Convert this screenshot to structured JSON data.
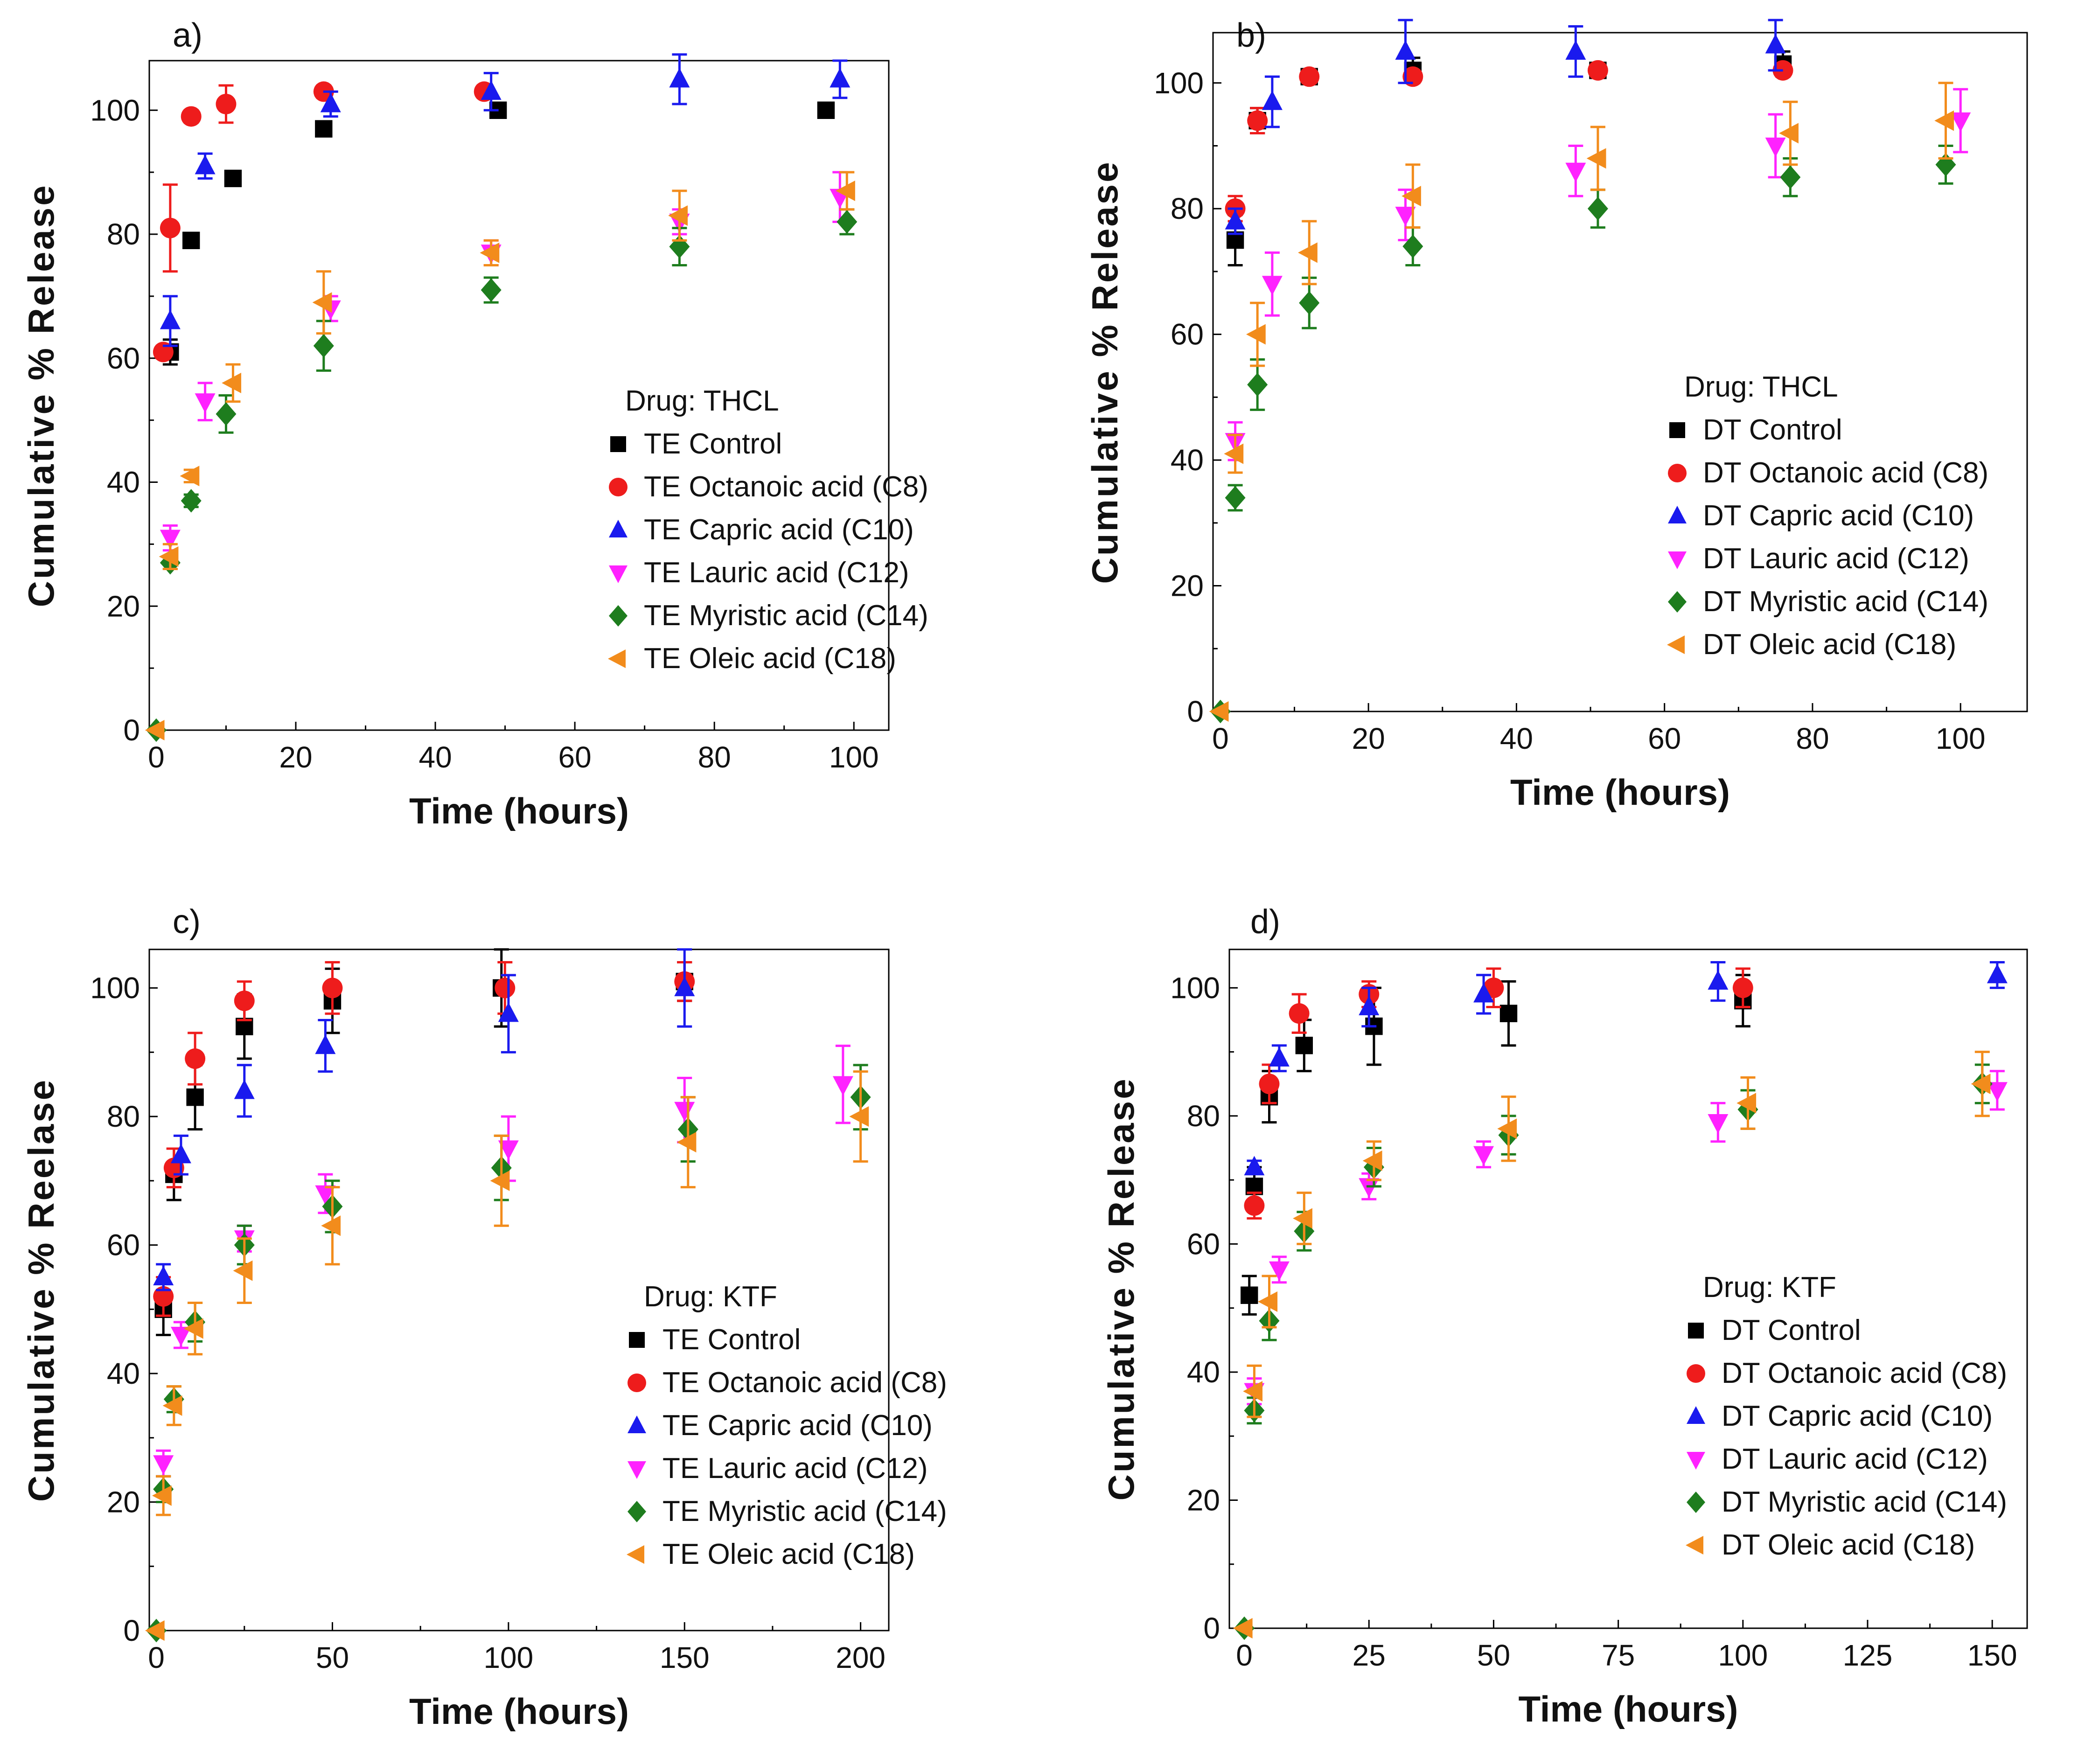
{
  "chart_data": [
    {
      "panel": "a)",
      "type": "scatter",
      "xlabel": "Time (hours)",
      "ylabel": "Cumulative % Release",
      "xlim": [
        -1,
        105
      ],
      "ylim": [
        0,
        108
      ],
      "xticks": [
        0,
        20,
        40,
        60,
        80,
        100
      ],
      "yticks": [
        0,
        20,
        40,
        60,
        80,
        100
      ],
      "legend_title": "Drug: THCL",
      "legend_position": "lower-right",
      "series": [
        {
          "name": "TE Control",
          "marker": "square",
          "color": "#000000",
          "x": [
            2,
            5,
            11,
            24,
            49,
            96
          ],
          "y": [
            61,
            79,
            89,
            97,
            100,
            100
          ],
          "err": [
            2,
            1,
            1,
            1,
            1,
            1
          ]
        },
        {
          "name": "TE Octanoic acid (C8)",
          "marker": "circle",
          "color": "#ee1c1c",
          "x": [
            1,
            2,
            5,
            10,
            24,
            47
          ],
          "y": [
            61,
            81,
            99,
            101,
            103,
            103
          ],
          "err": [
            1,
            7,
            1,
            3,
            1,
            1
          ]
        },
        {
          "name": "TE Capric acid (C10)",
          "marker": "triangle-up",
          "color": "#1a1aee",
          "x": [
            2,
            7,
            25,
            48,
            75,
            98
          ],
          "y": [
            66,
            91,
            101,
            103,
            105,
            105
          ],
          "err": [
            4,
            2,
            2,
            3,
            4,
            3
          ]
        },
        {
          "name": "TE Lauric acid (C12)",
          "marker": "triangle-down",
          "color": "#ff22ff",
          "x": [
            2,
            7,
            25,
            48,
            75,
            98
          ],
          "y": [
            31,
            53,
            68,
            77,
            82,
            86
          ],
          "err": [
            2,
            3,
            2,
            2,
            2,
            4
          ]
        },
        {
          "name": "TE Myristic acid (C14)",
          "marker": "diamond",
          "color": "#1e7d1e",
          "x": [
            0,
            2,
            5,
            10,
            24,
            48,
            75,
            99
          ],
          "y": [
            0,
            27,
            37,
            51,
            62,
            71,
            78,
            82
          ],
          "err": [
            0,
            1,
            1,
            3,
            4,
            2,
            3,
            2
          ]
        },
        {
          "name": "TE Oleic acid (C18)",
          "marker": "triangle-left",
          "color": "#f28c1c",
          "x": [
            0,
            2,
            5,
            11,
            24,
            48,
            75,
            99
          ],
          "y": [
            0,
            28,
            41,
            56,
            69,
            77,
            83,
            87
          ],
          "err": [
            0,
            2,
            1,
            3,
            5,
            2,
            4,
            3
          ]
        }
      ]
    },
    {
      "panel": "b)",
      "type": "scatter",
      "xlabel": "Time (hours)",
      "ylabel": "Cumulative % Release",
      "xlim": [
        -1,
        109
      ],
      "ylim": [
        0,
        108
      ],
      "xticks": [
        0,
        20,
        40,
        60,
        80,
        100
      ],
      "yticks": [
        0,
        20,
        40,
        60,
        80,
        100
      ],
      "legend_title": "Drug: THCL",
      "legend_position": "lower-right",
      "series": [
        {
          "name": "DT Control",
          "marker": "square",
          "color": "#000000",
          "x": [
            2,
            5,
            12,
            26,
            51,
            76
          ],
          "y": [
            75,
            94,
            101,
            102,
            102,
            103
          ],
          "err": [
            4,
            2,
            1,
            2,
            1,
            2
          ]
        },
        {
          "name": "DT Octanoic acid (C8)",
          "marker": "circle",
          "color": "#ee1c1c",
          "x": [
            2,
            5,
            12,
            26,
            51,
            76
          ],
          "y": [
            80,
            94,
            101,
            101,
            102,
            102
          ],
          "err": [
            2,
            2,
            1,
            1,
            1,
            1
          ]
        },
        {
          "name": "DT Capric acid (C10)",
          "marker": "triangle-up",
          "color": "#1a1aee",
          "x": [
            2,
            7,
            25,
            48,
            75
          ],
          "y": [
            78,
            97,
            105,
            105,
            106
          ],
          "err": [
            2,
            4,
            5,
            4,
            4
          ]
        },
        {
          "name": "DT Lauric acid (C12)",
          "marker": "triangle-down",
          "color": "#ff22ff",
          "x": [
            2,
            7,
            25,
            48,
            75,
            100
          ],
          "y": [
            43,
            68,
            79,
            86,
            90,
            94
          ],
          "err": [
            3,
            5,
            4,
            4,
            5,
            5
          ]
        },
        {
          "name": "DT Myristic acid (C14)",
          "marker": "diamond",
          "color": "#1e7d1e",
          "x": [
            0,
            2,
            5,
            12,
            26,
            51,
            77,
            98
          ],
          "y": [
            0,
            34,
            52,
            65,
            74,
            80,
            85,
            87
          ],
          "err": [
            0,
            2,
            4,
            4,
            3,
            3,
            3,
            3
          ]
        },
        {
          "name": "DT Oleic acid (C18)",
          "marker": "triangle-left",
          "color": "#f28c1c",
          "x": [
            0,
            2,
            5,
            12,
            26,
            51,
            77,
            98
          ],
          "y": [
            0,
            41,
            60,
            73,
            82,
            88,
            92,
            94
          ],
          "err": [
            0,
            3,
            5,
            5,
            5,
            5,
            5,
            6
          ]
        }
      ]
    },
    {
      "panel": "c)",
      "type": "scatter",
      "xlabel": "Time (hours)",
      "ylabel": "Cumulative % Reelase",
      "xlim": [
        -2,
        208
      ],
      "ylim": [
        0,
        106
      ],
      "xticks": [
        0,
        50,
        100,
        150,
        200
      ],
      "yticks": [
        0,
        20,
        40,
        60,
        80,
        100
      ],
      "legend_title": "Drug: KTF",
      "legend_position": "lower-right",
      "series": [
        {
          "name": "TE Control",
          "marker": "square",
          "color": "#000000",
          "x": [
            2,
            5,
            11,
            25,
            50,
            98,
            150
          ],
          "y": [
            50,
            71,
            83,
            94,
            98,
            100,
            101
          ],
          "err": [
            4,
            4,
            5,
            5,
            5,
            6,
            3
          ]
        },
        {
          "name": "TE Octanoic acid (C8)",
          "marker": "circle",
          "color": "#ee1c1c",
          "x": [
            2,
            5,
            11,
            25,
            50,
            99,
            150
          ],
          "y": [
            52,
            72,
            89,
            98,
            100,
            100,
            101
          ],
          "err": [
            3,
            3,
            4,
            3,
            4,
            4,
            3
          ]
        },
        {
          "name": "TE Capric acid (C10)",
          "marker": "triangle-up",
          "color": "#1a1aee",
          "x": [
            2,
            7,
            25,
            48,
            100,
            150
          ],
          "y": [
            55,
            74,
            84,
            91,
            96,
            100
          ],
          "err": [
            2,
            3,
            4,
            4,
            6,
            6
          ]
        },
        {
          "name": "TE Lauric acid (C12)",
          "marker": "triangle-down",
          "color": "#ff22ff",
          "x": [
            2,
            7,
            25,
            48,
            100,
            150,
            195
          ],
          "y": [
            26,
            46,
            61,
            68,
            75,
            81,
            85
          ],
          "err": [
            2,
            2,
            2,
            3,
            5,
            5,
            6
          ]
        },
        {
          "name": "TE Myristic acid (C14)",
          "marker": "diamond",
          "color": "#1e7d1e",
          "x": [
            0,
            2,
            5,
            11,
            25,
            50,
            98,
            151,
            200
          ],
          "y": [
            0,
            22,
            36,
            48,
            60,
            66,
            72,
            78,
            83
          ],
          "err": [
            0,
            2,
            2,
            3,
            3,
            4,
            5,
            5,
            5
          ]
        },
        {
          "name": "TE Oleic acid (C18)",
          "marker": "triangle-left",
          "color": "#f28c1c",
          "x": [
            0,
            2,
            5,
            11,
            25,
            50,
            98,
            151,
            200
          ],
          "y": [
            0,
            21,
            35,
            47,
            56,
            63,
            70,
            76,
            80
          ],
          "err": [
            0,
            3,
            3,
            4,
            5,
            6,
            7,
            7,
            7
          ]
        }
      ]
    },
    {
      "panel": "d)",
      "type": "scatter",
      "xlabel": "Time (hours)",
      "ylabel": "Cumulative % Release",
      "xlim": [
        -3,
        157
      ],
      "ylim": [
        0,
        106
      ],
      "xticks": [
        0,
        25,
        50,
        75,
        100,
        125,
        150
      ],
      "yticks": [
        0,
        20,
        40,
        60,
        80,
        100
      ],
      "legend_title": "Drug: KTF",
      "legend_position": "lower-right",
      "series": [
        {
          "name": "DT Control",
          "marker": "square",
          "color": "#000000",
          "x": [
            1,
            2,
            5,
            12,
            26,
            53,
            100
          ],
          "y": [
            52,
            69,
            83,
            91,
            94,
            96,
            98
          ],
          "err": [
            3,
            3,
            4,
            4,
            6,
            5,
            4
          ]
        },
        {
          "name": "DT Octanoic acid (C8)",
          "marker": "circle",
          "color": "#ee1c1c",
          "x": [
            2,
            5,
            11,
            25,
            50,
            100
          ],
          "y": [
            66,
            85,
            96,
            99,
            100,
            100
          ],
          "err": [
            2,
            3,
            3,
            2,
            3,
            3
          ]
        },
        {
          "name": "DT Capric acid (C10)",
          "marker": "triangle-up",
          "color": "#1a1aee",
          "x": [
            2,
            7,
            25,
            48,
            95,
            151
          ],
          "y": [
            72,
            89,
            97,
            99,
            101,
            102
          ],
          "err": [
            1,
            2,
            3,
            3,
            3,
            2
          ]
        },
        {
          "name": "DT Lauric acid (C12)",
          "marker": "triangle-down",
          "color": "#ff22ff",
          "x": [
            2,
            7,
            25,
            48,
            95,
            151
          ],
          "y": [
            37,
            56,
            69,
            74,
            79,
            84
          ],
          "err": [
            2,
            2,
            2,
            2,
            3,
            3
          ]
        },
        {
          "name": "DT Myristic acid (C14)",
          "marker": "diamond",
          "color": "#1e7d1e",
          "x": [
            0,
            2,
            5,
            12,
            26,
            53,
            101,
            148
          ],
          "y": [
            0,
            34,
            48,
            62,
            72,
            77,
            81,
            85
          ],
          "err": [
            0,
            2,
            3,
            3,
            3,
            3,
            3,
            3
          ]
        },
        {
          "name": "DT Oleic acid (C18)",
          "marker": "triangle-left",
          "color": "#f28c1c",
          "x": [
            0,
            2,
            5,
            12,
            26,
            53,
            101,
            148
          ],
          "y": [
            0,
            37,
            51,
            64,
            73,
            78,
            82,
            85
          ],
          "err": [
            0,
            4,
            4,
            4,
            3,
            5,
            4,
            5
          ]
        }
      ]
    }
  ]
}
